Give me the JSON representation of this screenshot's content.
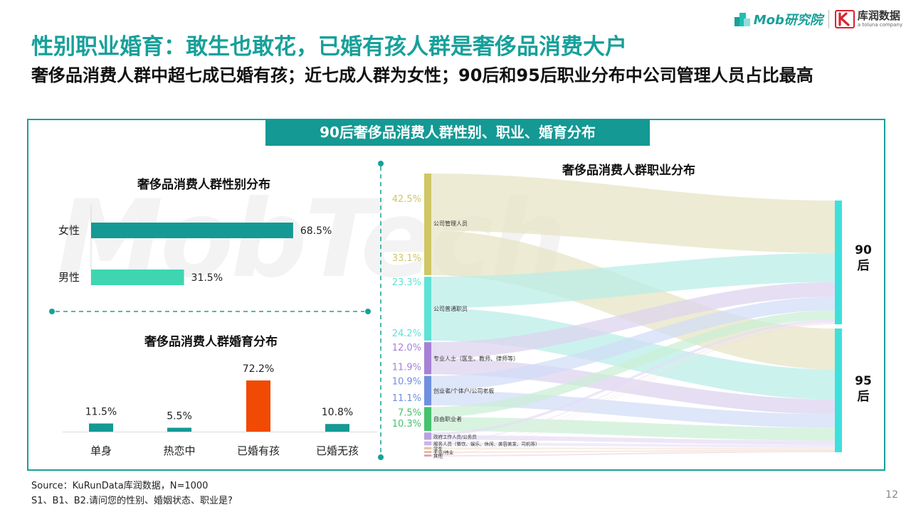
{
  "brand": {
    "mob_logo": "Mob研究院",
    "kr_logo_cn": "库润数据",
    "kr_logo_en": "a toluna company"
  },
  "title": "性别职业婚育：敢生也敢花，已婚有孩人群是奢侈品消费大户",
  "subtitle": "奢侈品消费人群中超七成已婚有孩；近七成人群为女性；90后和95后职业分布中公司管理人员占比最高",
  "panel_title": "90后奢侈品消费人群性别、职业、婚育分布",
  "watermark": "MobTech",
  "colors": {
    "teal": "#149994",
    "mint": "#3ed6b0",
    "orange": "#f04a05"
  },
  "chart_data": [
    {
      "type": "bar",
      "orientation": "horizontal",
      "title": "奢侈品消费人群性别分布",
      "categories": [
        "女性",
        "男性"
      ],
      "values": [
        68.5,
        31.5
      ],
      "value_labels": [
        "68.5%",
        "31.5%"
      ],
      "colors": [
        "#149994",
        "#3ed6b0"
      ]
    },
    {
      "type": "bar",
      "title": "奢侈品消费人群婚育分布",
      "categories": [
        "单身",
        "热恋中",
        "已婚有孩",
        "已婚无孩"
      ],
      "values": [
        11.5,
        5.5,
        72.2,
        10.8
      ],
      "value_labels": [
        "11.5%",
        "5.5%",
        "72.2%",
        "10.8%"
      ],
      "colors": [
        "#149994",
        "#149994",
        "#f04a05",
        "#149994"
      ]
    },
    {
      "type": "sankey",
      "title": "奢侈品消费人群职业分布",
      "targets": [
        {
          "label": "90后",
          "color": "#3ee0dc"
        },
        {
          "label": "95后",
          "color": "#3ee0dc"
        }
      ],
      "nodes": [
        {
          "label": "公司管理人员",
          "color": "#cfc765",
          "flow_color": "#e6e3c4",
          "values": [
            42.5,
            33.1
          ],
          "value_labels": [
            "42.5%",
            "33.1%"
          ]
        },
        {
          "label": "公司普通职员",
          "color": "#5ee2d6",
          "flow_color": "#b8ede8",
          "values": [
            23.3,
            24.2
          ],
          "value_labels": [
            "23.3%",
            "24.2%"
          ]
        },
        {
          "label": "专业人士（医生、教师、律师等）",
          "color": "#a582d6",
          "flow_color": "#ddd2ef",
          "values": [
            12.0,
            11.9
          ],
          "value_labels": [
            "12.0%",
            "11.9%"
          ]
        },
        {
          "label": "创业者/个体户/公司老板",
          "color": "#6f8fe0",
          "flow_color": "#d1dcf6",
          "values": [
            10.9,
            11.1
          ],
          "value_labels": [
            "10.9%",
            "11.1%"
          ]
        },
        {
          "label": "自由职业者",
          "color": "#45c26e",
          "flow_color": "#cbeed5",
          "values": [
            7.5,
            10.3
          ],
          "value_labels": [
            "7.5%",
            "10.3%"
          ]
        },
        {
          "label": "政府工作人员/公务员",
          "color": "#b9a0e2",
          "flow_color": "#e6dcf5",
          "values": [
            2.0,
            3.4
          ],
          "value_labels": [
            "",
            ""
          ]
        },
        {
          "label": "服务人员（餐饮、娱乐、休闲、美容美发、司机等）",
          "color": "#c9b4e4",
          "flow_color": "#ece3f6",
          "values": [
            0.8,
            2.2
          ],
          "value_labels": [
            "",
            ""
          ]
        },
        {
          "label": "学生",
          "color": "#e0c9a0",
          "flow_color": "#f3eadb",
          "values": [
            0.4,
            1.5
          ],
          "value_labels": [
            "",
            ""
          ]
        },
        {
          "label": "无业/待业",
          "color": "#e6b0a8",
          "flow_color": "#f5dedb",
          "values": [
            0.3,
            1.1
          ],
          "value_labels": [
            "",
            ""
          ]
        },
        {
          "label": "其他",
          "color": "#d9a0b0",
          "flow_color": "#f2dbe2",
          "values": [
            0.3,
            1.2
          ],
          "value_labels": [
            "",
            ""
          ]
        }
      ]
    }
  ],
  "footer": {
    "source": "Source：KuRunData库润数据，N=1000",
    "question": "S1、B1、B2.请问您的性别、婚姻状态、职业是?"
  },
  "page_number": "12"
}
